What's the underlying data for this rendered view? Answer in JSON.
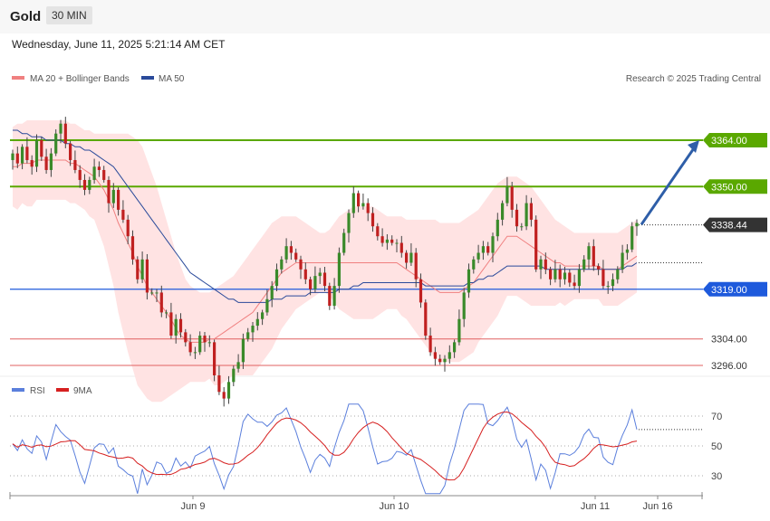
{
  "header": {
    "symbol": "Gold",
    "timeframe": "30 MIN"
  },
  "datetime": "Wednesday, June 11, 2025 5:21:14 AM CET",
  "legend": {
    "ma20": "MA 20 + Bollinger Bands",
    "ma50": "MA 50",
    "credit": "Research © 2025 Trading Central"
  },
  "rsi_legend": {
    "rsi": "RSI",
    "ma9": "9MA"
  },
  "colors": {
    "resistance": "#5aa800",
    "support": "#1e5adc",
    "target": "#e06060",
    "band": "#ffe3e3",
    "ma20": "#f08080",
    "ma50": "#2a4a9a",
    "bull": "#3a8a2a",
    "bear": "#c02020",
    "arrow": "#2e5ea8",
    "rsi": "#5b7fdc",
    "rsi_ma": "#d62020"
  },
  "chart_data": {
    "type": "candlestick",
    "price_axis": {
      "min": 3290,
      "max": 3375
    },
    "current_price": "3338.44",
    "levels": [
      {
        "label": "3364.00",
        "value": 3364,
        "kind": "resistance"
      },
      {
        "label": "3350.00",
        "value": 3350,
        "kind": "resistance"
      },
      {
        "label": "3319.00",
        "value": 3319,
        "kind": "support"
      },
      {
        "label": "3304.00",
        "value": 3304,
        "kind": "target"
      },
      {
        "label": "3296.00",
        "value": 3296,
        "kind": "target"
      }
    ],
    "x_labels": [
      "Jun 9",
      "Jun 10",
      "Jun 11",
      "Jun 16"
    ],
    "close": [
      3360,
      3357,
      3362,
      3358,
      3356,
      3364,
      3359,
      3355,
      3360,
      3366,
      3369,
      3363,
      3358,
      3355,
      3352,
      3349,
      3352,
      3356,
      3355,
      3352,
      3345,
      3349,
      3343,
      3340,
      3335,
      3328,
      3322,
      3328,
      3318,
      3318,
      3318,
      3312,
      3312,
      3305,
      3310,
      3306,
      3303,
      3300,
      3300,
      3305,
      3303,
      3303,
      3293,
      3288,
      3286,
      3291,
      3295,
      3297,
      3304,
      3306,
      3308,
      3310,
      3312,
      3316,
      3320,
      3325,
      3328,
      3332,
      3330,
      3328,
      3325,
      3322,
      3319,
      3323,
      3324,
      3320,
      3314,
      3320,
      3330,
      3336,
      3342,
      3348,
      3344,
      3345,
      3342,
      3338,
      3335,
      3333,
      3334,
      3333,
      3333,
      3330,
      3327,
      3330,
      3322,
      3315,
      3305,
      3300,
      3298,
      3297,
      3298,
      3300,
      3303,
      3310,
      3318,
      3325,
      3328,
      3330,
      3332,
      3330,
      3335,
      3340,
      3345,
      3350,
      3343,
      3338,
      3338,
      3345,
      3340,
      3325,
      3328,
      3325,
      3322,
      3325,
      3322,
      3324,
      3321,
      3320,
      3325,
      3328,
      3332,
      3326,
      3325,
      3320,
      3320,
      3322,
      3325,
      3330,
      3331,
      3338,
      3339
    ],
    "ma20": [
      3356,
      3356,
      3357,
      3357,
      3357,
      3358,
      3358,
      3358,
      3358,
      3358,
      3358,
      3358,
      3357,
      3357,
      3356,
      3355,
      3354,
      3353,
      3351,
      3349,
      3346,
      3343,
      3339,
      3336,
      3333,
      3330,
      3326,
      3323,
      3320,
      3318,
      3316,
      3314,
      3312,
      3310,
      3307,
      3305,
      3304,
      3303,
      3303,
      3303,
      3303,
      3304,
      3304,
      3305,
      3306,
      3307,
      3308,
      3309,
      3310,
      3311,
      3312,
      3314,
      3316,
      3318,
      3320,
      3322,
      3324,
      3325,
      3326,
      3327,
      3327,
      3327,
      3327,
      3327,
      3327,
      3327,
      3327,
      3327,
      3327,
      3327,
      3327,
      3327,
      3327,
      3327,
      3327,
      3327,
      3327,
      3327,
      3327,
      3327,
      3327,
      3326,
      3325,
      3324,
      3323,
      3322,
      3321,
      3320,
      3319,
      3318,
      3318,
      3318,
      3318,
      3318,
      3319,
      3320,
      3321,
      3323,
      3325,
      3327,
      3329,
      3331,
      3333,
      3335,
      3335,
      3335,
      3334,
      3333,
      3332,
      3331,
      3330,
      3329,
      3328,
      3327,
      3327,
      3326,
      3326,
      3326,
      3326,
      3326,
      3326,
      3326,
      3326,
      3325,
      3325,
      3325,
      3325,
      3326,
      3327,
      3328,
      3329
    ],
    "bb_upper": [
      3368,
      3369,
      3369,
      3370,
      3370,
      3370,
      3370,
      3370,
      3370,
      3370,
      3370,
      3370,
      3369,
      3369,
      3368,
      3367,
      3367,
      3366,
      3366,
      3366,
      3366,
      3366,
      3366,
      3366,
      3366,
      3365,
      3364,
      3362,
      3358,
      3354,
      3350,
      3345,
      3340,
      3335,
      3330,
      3326,
      3322,
      3320,
      3319,
      3318,
      3318,
      3318,
      3319,
      3320,
      3321,
      3322,
      3323,
      3325,
      3327,
      3329,
      3331,
      3333,
      3335,
      3337,
      3339,
      3340,
      3341,
      3341,
      3341,
      3341,
      3340,
      3339,
      3338,
      3337,
      3336,
      3336,
      3337,
      3339,
      3341,
      3342,
      3343,
      3344,
      3344,
      3344,
      3344,
      3344,
      3343,
      3342,
      3341,
      3341,
      3341,
      3341,
      3340,
      3340,
      3340,
      3340,
      3340,
      3340,
      3340,
      3339,
      3339,
      3339,
      3339,
      3339,
      3340,
      3341,
      3342,
      3343,
      3345,
      3347,
      3349,
      3351,
      3352,
      3353,
      3353,
      3353,
      3352,
      3351,
      3350,
      3348,
      3346,
      3344,
      3342,
      3340,
      3339,
      3338,
      3337,
      3336,
      3336,
      3336,
      3336,
      3336,
      3336,
      3336,
      3336,
      3336,
      3336,
      3337,
      3338,
      3339,
      3340
    ],
    "bb_lower": [
      3344,
      3343,
      3345,
      3344,
      3344,
      3346,
      3346,
      3346,
      3346,
      3346,
      3346,
      3346,
      3345,
      3345,
      3344,
      3343,
      3341,
      3340,
      3336,
      3332,
      3326,
      3320,
      3312,
      3306,
      3300,
      3295,
      3290,
      3288,
      3286,
      3285,
      3285,
      3285,
      3286,
      3287,
      3288,
      3289,
      3290,
      3291,
      3291,
      3291,
      3291,
      3292,
      3290,
      3290,
      3291,
      3292,
      3293,
      3293,
      3293,
      3293,
      3293,
      3295,
      3297,
      3299,
      3301,
      3304,
      3307,
      3309,
      3311,
      3313,
      3314,
      3315,
      3316,
      3317,
      3318,
      3318,
      3317,
      3315,
      3313,
      3312,
      3311,
      3310,
      3310,
      3310,
      3310,
      3310,
      3311,
      3312,
      3313,
      3313,
      3313,
      3311,
      3310,
      3308,
      3306,
      3304,
      3302,
      3300,
      3298,
      3297,
      3297,
      3297,
      3297,
      3297,
      3298,
      3299,
      3300,
      3303,
      3305,
      3307,
      3309,
      3311,
      3314,
      3317,
      3317,
      3317,
      3316,
      3315,
      3314,
      3314,
      3314,
      3314,
      3314,
      3314,
      3315,
      3314,
      3315,
      3316,
      3316,
      3316,
      3316,
      3316,
      3316,
      3314,
      3314,
      3314,
      3314,
      3315,
      3316,
      3317,
      3318
    ],
    "ma50": [
      3367,
      3367,
      3366,
      3366,
      3365,
      3365,
      3365,
      3364,
      3364,
      3364,
      3364,
      3363,
      3363,
      3362,
      3362,
      3361,
      3361,
      3360,
      3359,
      3358,
      3357,
      3356,
      3354,
      3352,
      3350,
      3348,
      3346,
      3344,
      3342,
      3340,
      3338,
      3336,
      3334,
      3332,
      3330,
      3328,
      3326,
      3324,
      3323,
      3322,
      3321,
      3320,
      3319,
      3318,
      3317,
      3316,
      3316,
      3315,
      3315,
      3315,
      3315,
      3315,
      3315,
      3315,
      3316,
      3316,
      3316,
      3317,
      3317,
      3317,
      3317,
      3317,
      3318,
      3318,
      3318,
      3318,
      3318,
      3318,
      3319,
      3319,
      3319,
      3320,
      3320,
      3321,
      3321,
      3321,
      3321,
      3321,
      3321,
      3321,
      3321,
      3321,
      3321,
      3321,
      3321,
      3321,
      3320,
      3320,
      3320,
      3320,
      3320,
      3320,
      3320,
      3320,
      3320,
      3321,
      3321,
      3322,
      3322,
      3323,
      3323,
      3324,
      3325,
      3326,
      3326,
      3326,
      3326,
      3326,
      3326,
      3326,
      3326,
      3325,
      3325,
      3325,
      3325,
      3325,
      3325,
      3325,
      3325,
      3325,
      3325,
      3325,
      3325,
      3325,
      3325,
      3325,
      3325,
      3325,
      3326,
      3326,
      3327
    ],
    "projection": {
      "from_price": 3338,
      "to_price": 3364
    },
    "rsi": {
      "levels": [
        30,
        50,
        70
      ],
      "ylim": [
        20,
        80
      ],
      "last": 61
    }
  }
}
